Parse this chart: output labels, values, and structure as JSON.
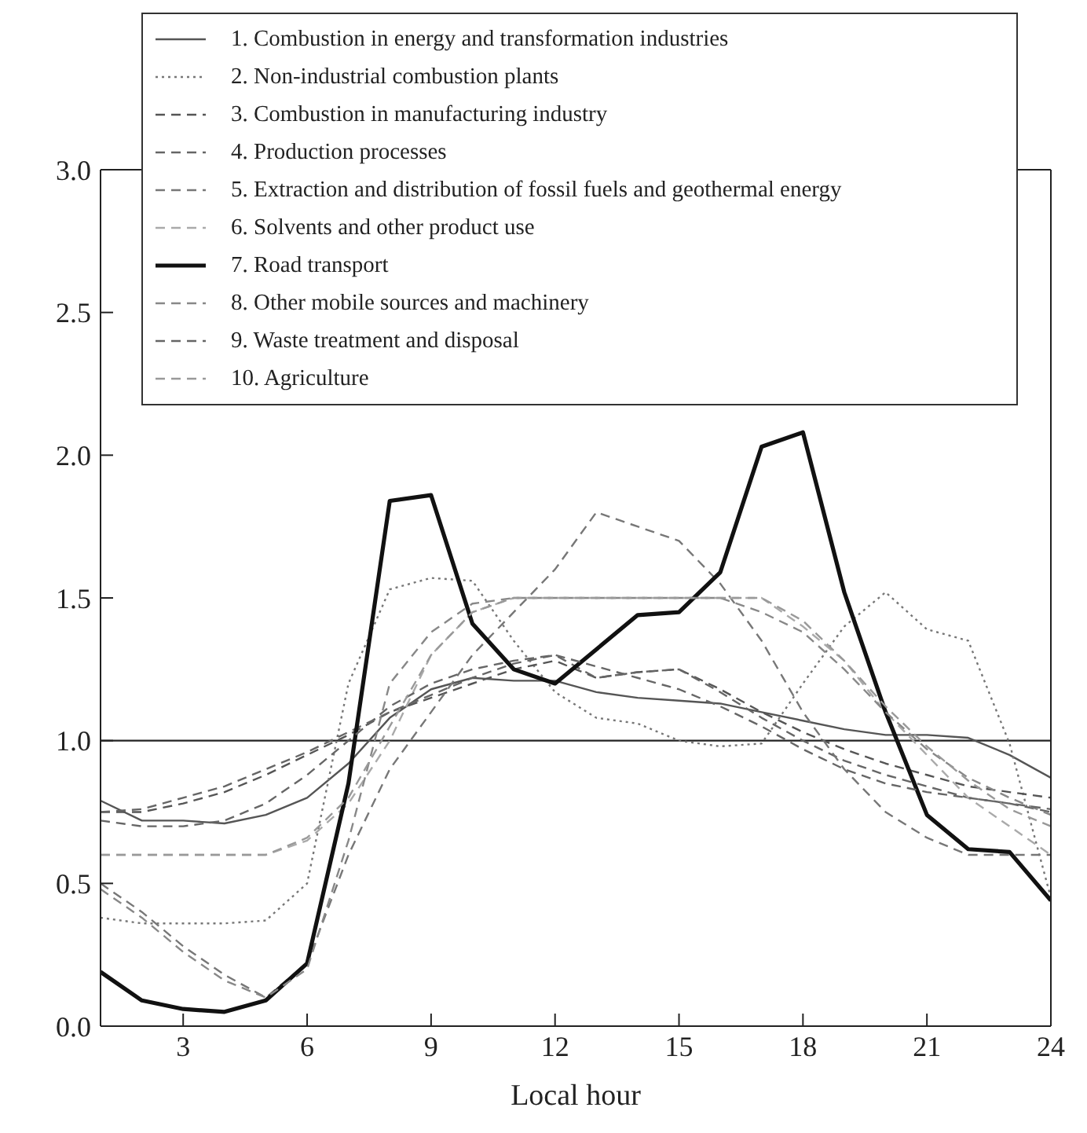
{
  "chart_data": {
    "type": "line",
    "xlabel": "Local hour",
    "x": [
      1,
      2,
      3,
      4,
      5,
      6,
      7,
      8,
      9,
      10,
      11,
      12,
      13,
      14,
      15,
      16,
      17,
      18,
      19,
      20,
      21,
      22,
      23,
      24
    ],
    "xlim": [
      1,
      24
    ],
    "xticks": [
      3,
      6,
      9,
      12,
      15,
      18,
      21,
      24
    ],
    "ylim": [
      0,
      3
    ],
    "yticks": [
      {
        "value": 0,
        "label": "0.0"
      },
      {
        "value": 0.5,
        "label": "0.5"
      },
      {
        "value": 1,
        "label": "1.0"
      },
      {
        "value": 1.5,
        "label": "1.5"
      },
      {
        "value": 2,
        "label": "2.0"
      },
      {
        "value": 2.5,
        "label": "2.5"
      },
      {
        "value": 3,
        "label": "3.0"
      }
    ],
    "grid": false,
    "legend": "top",
    "marker": "none",
    "ref_lines": [
      {
        "axis": "y",
        "value": 1,
        "color": "#222222"
      }
    ],
    "series": [
      {
        "name": "1. Combustion in energy and transformation industries",
        "color": "#555555",
        "line_style": "solid",
        "values": [
          0.79,
          0.72,
          0.72,
          0.71,
          0.74,
          0.8,
          0.92,
          1.08,
          1.18,
          1.22,
          1.21,
          1.21,
          1.17,
          1.15,
          1.14,
          1.13,
          1.1,
          1.07,
          1.04,
          1.02,
          1.02,
          1.01,
          0.95,
          0.87
        ]
      },
      {
        "name": "2. Non-industrial combustion plants",
        "color": "#777777",
        "line_style": "dotted",
        "values": [
          0.38,
          0.36,
          0.36,
          0.36,
          0.37,
          0.5,
          1.2,
          1.53,
          1.57,
          1.56,
          1.35,
          1.17,
          1.08,
          1.06,
          1.0,
          0.98,
          0.99,
          1.2,
          1.4,
          1.52,
          1.39,
          1.35,
          0.99,
          0.45
        ]
      },
      {
        "name": "3. Combustion in manufacturing industry",
        "color": "#555555",
        "line_style": "dashed",
        "values": [
          0.75,
          0.75,
          0.78,
          0.82,
          0.88,
          0.95,
          1.02,
          1.1,
          1.15,
          1.2,
          1.25,
          1.28,
          1.22,
          1.24,
          1.25,
          1.18,
          1.1,
          1.03,
          0.97,
          0.92,
          0.88,
          0.84,
          0.82,
          0.8
        ]
      },
      {
        "name": "4. Production processes",
        "color": "#666666",
        "line_style": "dashed",
        "values": [
          0.75,
          0.76,
          0.8,
          0.84,
          0.9,
          0.96,
          1.03,
          1.1,
          1.16,
          1.22,
          1.27,
          1.3,
          1.22,
          1.24,
          1.25,
          1.17,
          1.08,
          1.0,
          0.93,
          0.88,
          0.84,
          0.8,
          0.78,
          0.75
        ]
      },
      {
        "name": "5. Extraction and distribution of fossil fuels and geothermal energy",
        "color": "#777777",
        "line_style": "dashed",
        "values": [
          0.5,
          0.4,
          0.28,
          0.18,
          0.1,
          0.22,
          0.6,
          0.9,
          1.1,
          1.3,
          1.45,
          1.6,
          1.8,
          1.75,
          1.7,
          1.55,
          1.35,
          1.1,
          0.9,
          0.75,
          0.66,
          0.6,
          0.6,
          0.6
        ]
      },
      {
        "name": "6. Solvents and other product use",
        "color": "#aaaaaa",
        "line_style": "dashed",
        "values": [
          0.6,
          0.6,
          0.6,
          0.6,
          0.6,
          0.65,
          0.78,
          1.0,
          1.3,
          1.45,
          1.5,
          1.5,
          1.5,
          1.5,
          1.5,
          1.5,
          1.5,
          1.4,
          1.28,
          1.1,
          0.95,
          0.8,
          0.7,
          0.6
        ]
      },
      {
        "name": "7. Road transport",
        "color": "#111111",
        "line_style": "solid",
        "values": [
          0.19,
          0.09,
          0.06,
          0.05,
          0.09,
          0.22,
          0.85,
          1.84,
          1.86,
          1.41,
          1.25,
          1.2,
          1.32,
          1.44,
          1.45,
          1.59,
          2.03,
          2.08,
          1.52,
          1.1,
          0.74,
          0.62,
          0.61,
          0.44
        ]
      },
      {
        "name": "8. Other mobile sources and machinery",
        "color": "#888888",
        "line_style": "dashed",
        "values": [
          0.48,
          0.38,
          0.26,
          0.16,
          0.1,
          0.2,
          0.65,
          1.2,
          1.38,
          1.48,
          1.5,
          1.5,
          1.5,
          1.5,
          1.5,
          1.5,
          1.45,
          1.38,
          1.25,
          1.1,
          0.97,
          0.87,
          0.8,
          0.74
        ]
      },
      {
        "name": "9. Waste treatment and disposal",
        "color": "#666666",
        "line_style": "dashed",
        "values": [
          0.72,
          0.7,
          0.7,
          0.72,
          0.78,
          0.88,
          1.0,
          1.12,
          1.2,
          1.25,
          1.28,
          1.3,
          1.26,
          1.22,
          1.18,
          1.12,
          1.05,
          0.97,
          0.9,
          0.85,
          0.82,
          0.8,
          0.78,
          0.76
        ]
      },
      {
        "name": "10. Agriculture",
        "color": "#999999",
        "line_style": "dashed",
        "values": [
          0.6,
          0.6,
          0.6,
          0.6,
          0.6,
          0.66,
          0.8,
          1.05,
          1.3,
          1.45,
          1.5,
          1.5,
          1.5,
          1.5,
          1.5,
          1.5,
          1.5,
          1.42,
          1.28,
          1.12,
          0.98,
          0.86,
          0.76,
          0.7
        ]
      }
    ]
  }
}
